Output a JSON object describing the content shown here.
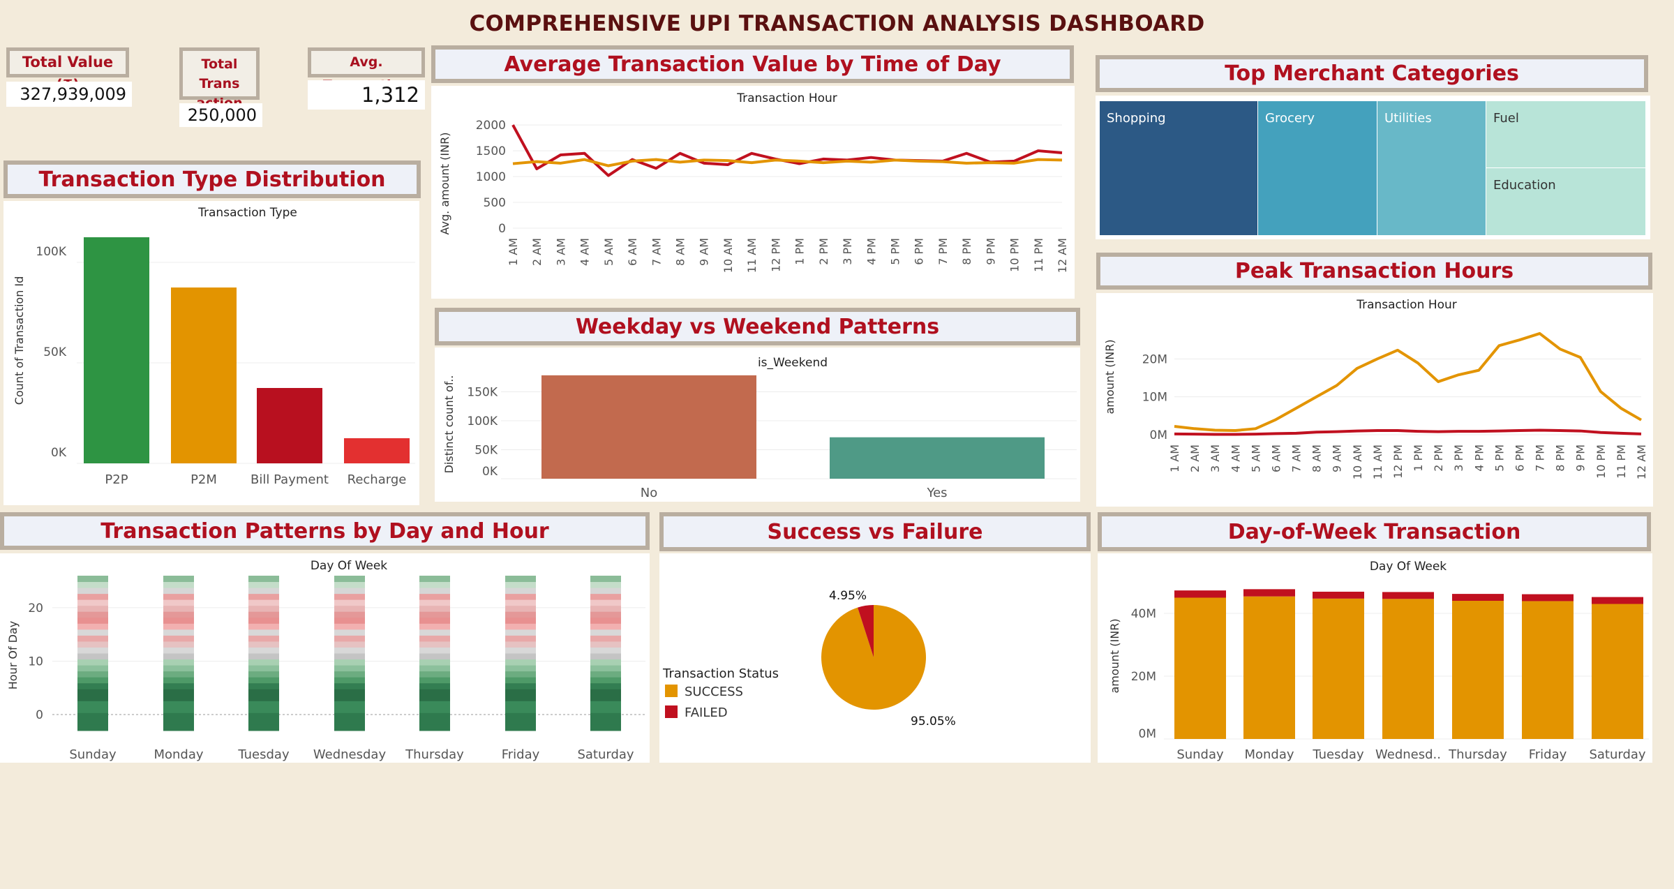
{
  "title": "COMPREHENSIVE UPI TRANSACTION ANALYSIS DASHBOARD",
  "kpis": {
    "total_value_label": "Total Value (₹)",
    "total_value": "327,939,009",
    "total_trans_label_1": "Total Trans",
    "total_trans_label_2": "action",
    "total_trans": "250,000",
    "avg_label": "Avg. Transaction",
    "avg_value": "1,312"
  },
  "sections": {
    "avg_time": "Average Transaction Value by Time of Day",
    "merchant": "Top Merchant Categories",
    "type_dist": "Transaction Type Distribution",
    "weekday": "Weekday vs Weekend Patterns",
    "peak": "Peak Transaction Hours",
    "day_hour": "Transaction Patterns by Day and Hour",
    "success": "Success vs Failure",
    "dow": "Day-of-Week Transaction"
  },
  "colors": {
    "accent": "#b0101f",
    "orange": "#e39400",
    "red": "#c0101f",
    "green": "#2e9443",
    "recharge": "#e33030"
  },
  "chart_data": [
    {
      "id": "avg_time",
      "type": "line",
      "title": "Transaction Hour",
      "ylabel": "Avg. amount (INR)",
      "yticks": [
        "0",
        "500",
        "1000",
        "1500",
        "2000"
      ],
      "ylim": [
        0,
        2150
      ],
      "categories": [
        "1 AM",
        "2 AM",
        "3 AM",
        "4 AM",
        "5 AM",
        "6 AM",
        "7 AM",
        "8 AM",
        "9 AM",
        "10 AM",
        "11 AM",
        "12 PM",
        "1 PM",
        "2 PM",
        "3 PM",
        "4 PM",
        "5 PM",
        "6 PM",
        "7 PM",
        "8 PM",
        "9 PM",
        "10 PM",
        "11 PM",
        "12 AM"
      ],
      "series": [
        {
          "name": "red",
          "values": [
            2000,
            1150,
            1420,
            1450,
            1020,
            1330,
            1160,
            1450,
            1260,
            1230,
            1450,
            1340,
            1250,
            1340,
            1320,
            1370,
            1320,
            1310,
            1300,
            1450,
            1280,
            1300,
            1500,
            1460
          ]
        },
        {
          "name": "orange",
          "values": [
            1250,
            1290,
            1260,
            1330,
            1210,
            1300,
            1330,
            1280,
            1320,
            1310,
            1270,
            1320,
            1300,
            1270,
            1300,
            1280,
            1320,
            1300,
            1290,
            1260,
            1270,
            1260,
            1330,
            1320
          ]
        }
      ]
    },
    {
      "id": "merchant",
      "type": "treemap",
      "categories": [
        "Shopping",
        "Grocery",
        "Utilities",
        "Fuel",
        "Education"
      ]
    },
    {
      "id": "type_dist",
      "type": "bar",
      "title": "Transaction Type",
      "ylabel": "Count of Transaction Id",
      "yticks": [
        "0K",
        "50K",
        "100K"
      ],
      "ylim": [
        0,
        125000
      ],
      "categories": [
        "P2P",
        "P2M",
        "Bill Payment",
        "Recharge"
      ],
      "values": [
        112500,
        87500,
        37500,
        12500
      ]
    },
    {
      "id": "weekday",
      "type": "bar",
      "title": "is_Weekend",
      "ylabel": "Distinct count of..",
      "yticks": [
        "0K",
        "50K",
        "100K",
        "150K"
      ],
      "ylim": [
        0,
        200000
      ],
      "categories": [
        "No",
        "Yes"
      ],
      "values": [
        178500,
        71500
      ]
    },
    {
      "id": "peak",
      "type": "line",
      "title": "Transaction Hour",
      "ylabel": "amount (INR)",
      "yticks": [
        "0M",
        "10M",
        "20M"
      ],
      "ylim": [
        0,
        30000000
      ],
      "categories": [
        "1 AM",
        "2 AM",
        "3 AM",
        "4 AM",
        "5 AM",
        "6 AM",
        "7 AM",
        "8 AM",
        "9 AM",
        "10 AM",
        "11 AM",
        "12 PM",
        "1 PM",
        "2 PM",
        "3 PM",
        "4 PM",
        "5 PM",
        "6 PM",
        "7 PM",
        "8 PM",
        "9 PM",
        "10 PM",
        "11 PM",
        "12 AM"
      ],
      "series": [
        {
          "name": "SUCCESS",
          "values": [
            2200000,
            1600000,
            1200000,
            1100000,
            1600000,
            4000000,
            7000000,
            10000000,
            13000000,
            17500000,
            20000000,
            22300000,
            18900000,
            14000000,
            15800000,
            17000000,
            23500000,
            25000000,
            26700000,
            22600000,
            20400000,
            11400000,
            7000000,
            3900000
          ]
        },
        {
          "name": "FAILED",
          "values": [
            200000,
            150000,
            100000,
            100000,
            150000,
            300000,
            400000,
            700000,
            800000,
            1000000,
            1100000,
            1100000,
            900000,
            800000,
            900000,
            900000,
            1000000,
            1100000,
            1200000,
            1100000,
            1000000,
            600000,
            400000,
            200000
          ]
        }
      ]
    },
    {
      "id": "day_hour",
      "type": "heatmap",
      "title": "Day Of Week",
      "ylabel": "Hour Of Day",
      "yticks": [
        "0",
        "10",
        "20"
      ],
      "ylim": [
        -3,
        26
      ],
      "categories": [
        "Sunday",
        "Monday",
        "Tuesday",
        "Wednesday",
        "Thursday",
        "Friday",
        "Saturday"
      ]
    },
    {
      "id": "success",
      "type": "pie",
      "legend_title": "Transaction Status",
      "labels": [
        "SUCCESS",
        "FAILED"
      ],
      "values": [
        95.05,
        4.95
      ],
      "value_labels": [
        "95.05%",
        "4.95%"
      ]
    },
    {
      "id": "dow",
      "type": "bar",
      "title": "Day Of Week",
      "ylabel": "amount (INR)",
      "yticks": [
        "0M",
        "20M",
        "40M"
      ],
      "ylim": [
        0,
        50000000
      ],
      "categories": [
        "Sunday",
        "Monday",
        "Tuesday",
        "Wednesd..",
        "Thursday",
        "Friday",
        "Saturday"
      ],
      "series": [
        {
          "name": "SUCCESS",
          "values": [
            45000000,
            45400000,
            44700000,
            44600000,
            44000000,
            43900000,
            43000000
          ]
        },
        {
          "name": "FAILED",
          "values": [
            2300000,
            2300000,
            2200000,
            2200000,
            2200000,
            2200000,
            2200000
          ]
        }
      ]
    }
  ]
}
